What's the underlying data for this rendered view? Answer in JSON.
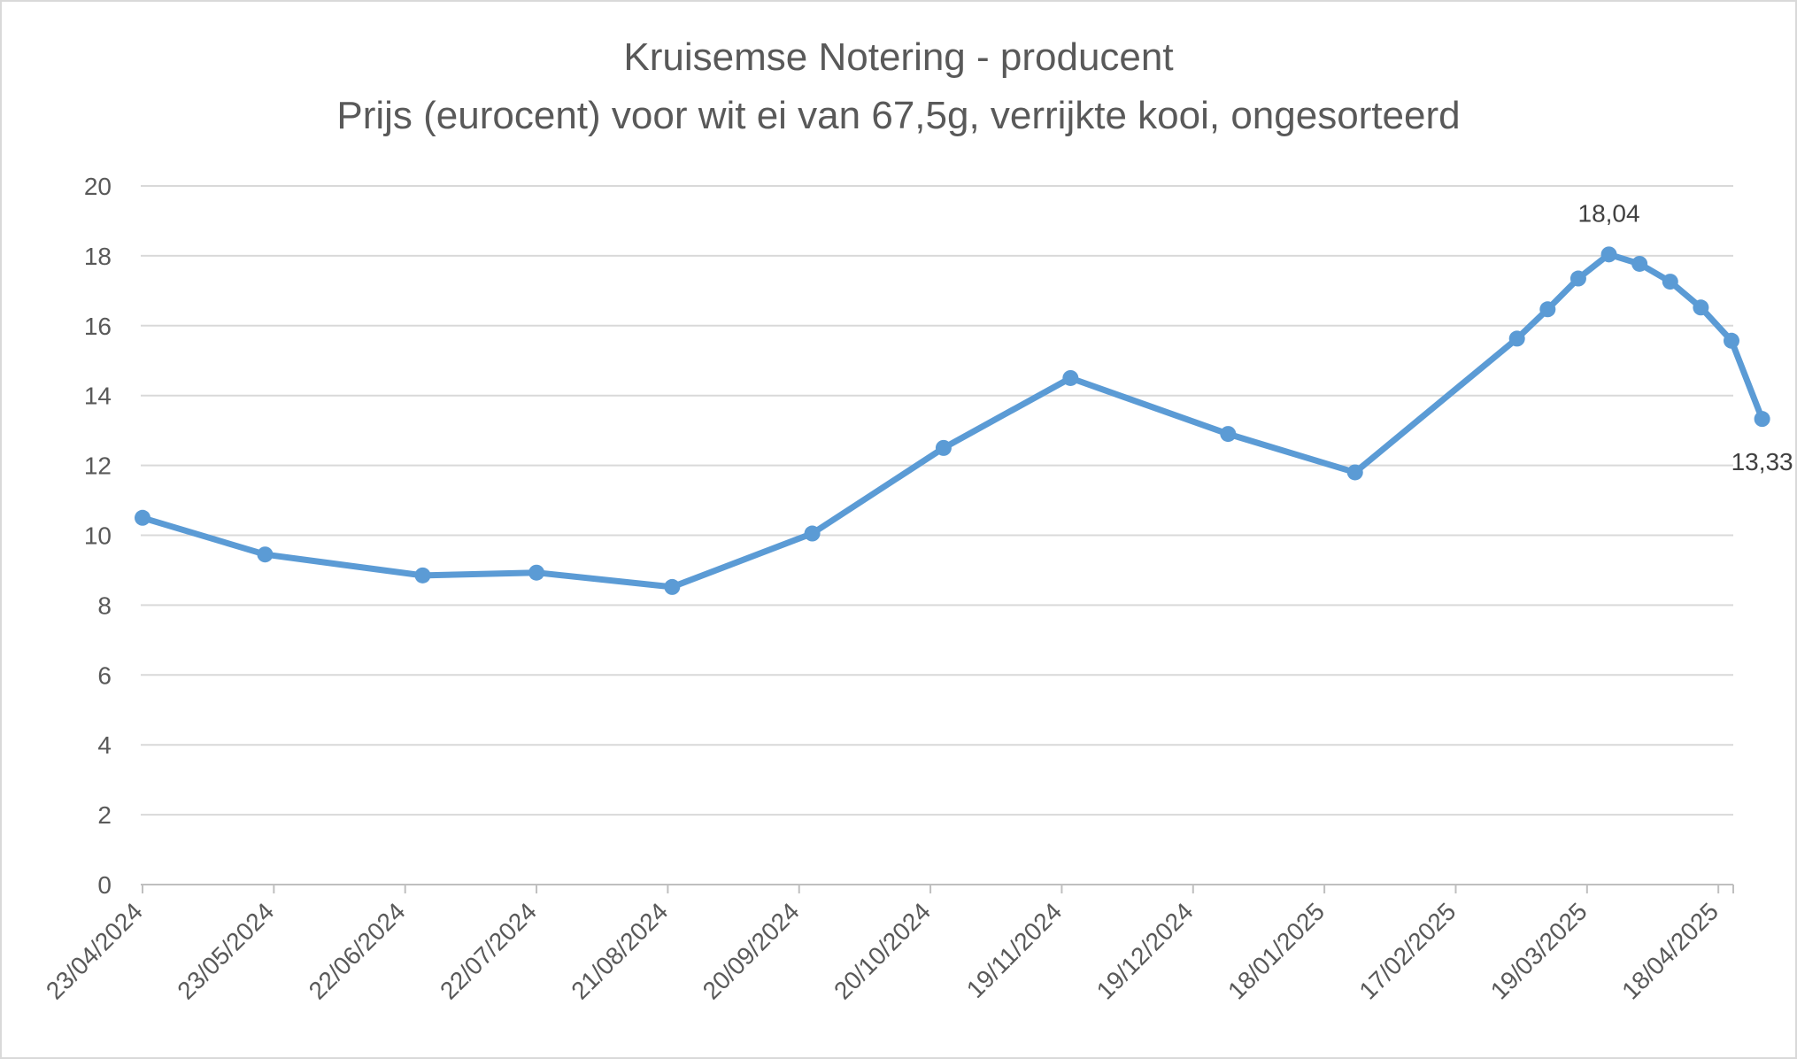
{
  "chart_data": {
    "type": "line",
    "title": "Kruisemse Notering - producent",
    "subtitle": "Prijs (eurocent) voor wit ei van 67,5g, verrijkte kooi, ongesorteerd",
    "xlabel": "",
    "ylabel": "",
    "ylim": [
      0,
      20
    ],
    "yticks": [
      0,
      2,
      4,
      6,
      8,
      10,
      12,
      14,
      16,
      18,
      20
    ],
    "xlim": [
      "2024-04-23",
      "2025-04-21"
    ],
    "xtick_labels": [
      "23/04/2024",
      "23/05/2024",
      "22/06/2024",
      "22/07/2024",
      "21/08/2024",
      "20/09/2024",
      "20/10/2024",
      "19/11/2024",
      "19/12/2024",
      "18/01/2025",
      "17/02/2025",
      "19/03/2025",
      "18/04/2025"
    ],
    "grid": true,
    "legend": "none",
    "series": [
      {
        "color": "#5b9bd5",
        "points": [
          {
            "x": "2024-04-23",
            "y": 10.5
          },
          {
            "x": "2024-05-21",
            "y": 9.45
          },
          {
            "x": "2024-06-26",
            "y": 8.85
          },
          {
            "x": "2024-07-22",
            "y": 8.93
          },
          {
            "x": "2024-08-22",
            "y": 8.52
          },
          {
            "x": "2024-09-23",
            "y": 10.05
          },
          {
            "x": "2024-10-23",
            "y": 12.5
          },
          {
            "x": "2024-11-21",
            "y": 14.5
          },
          {
            "x": "2024-12-27",
            "y": 12.9
          },
          {
            "x": "2025-01-25",
            "y": 11.8
          },
          {
            "x": "2025-03-03",
            "y": 15.63
          },
          {
            "x": "2025-03-10",
            "y": 16.47
          },
          {
            "x": "2025-03-17",
            "y": 17.35
          },
          {
            "x": "2025-03-24",
            "y": 18.04
          },
          {
            "x": "2025-03-31",
            "y": 17.77
          },
          {
            "x": "2025-04-07",
            "y": 17.26
          },
          {
            "x": "2025-04-14",
            "y": 16.52
          },
          {
            "x": "2025-04-21",
            "y": 15.57
          },
          {
            "x": "2025-04-28",
            "y": 13.33
          }
        ]
      }
    ],
    "data_labels": [
      {
        "x": "2025-03-24",
        "y": 18.04,
        "text": "18,04",
        "position": "above"
      },
      {
        "x": "2025-04-28",
        "y": 13.33,
        "text": "13,33",
        "position": "below"
      }
    ]
  }
}
